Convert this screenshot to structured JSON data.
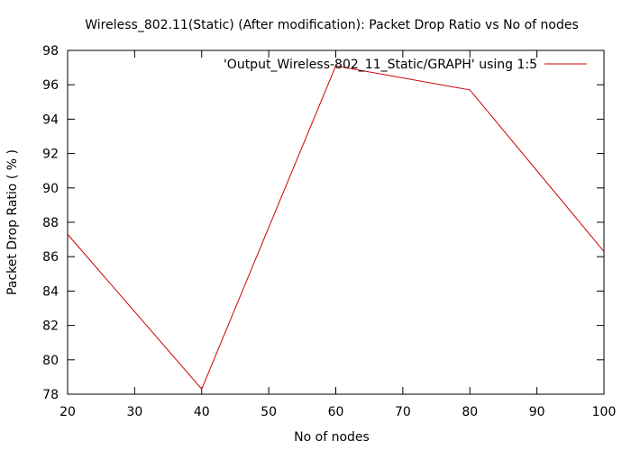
{
  "chart_data": {
    "type": "line",
    "title": "Wireless_802.11(Static) (After modification): Packet Drop Ratio vs No of nodes",
    "xlabel": "No of nodes",
    "ylabel": "Packet Drop Ratio ( % )",
    "xlim": [
      20,
      100
    ],
    "ylim": [
      78,
      98
    ],
    "xticks": [
      20,
      30,
      40,
      50,
      60,
      70,
      80,
      90,
      100
    ],
    "yticks": [
      78,
      80,
      82,
      84,
      86,
      88,
      90,
      92,
      94,
      96,
      98
    ],
    "grid": false,
    "legend_position": "top-right",
    "series": [
      {
        "name": "'Output_Wireless-802_11_Static/GRAPH' using 1:5",
        "color": "#cc0000",
        "x": [
          20,
          40,
          60,
          80,
          100
        ],
        "y": [
          87.3,
          78.3,
          97.1,
          95.7,
          86.3
        ]
      }
    ]
  }
}
